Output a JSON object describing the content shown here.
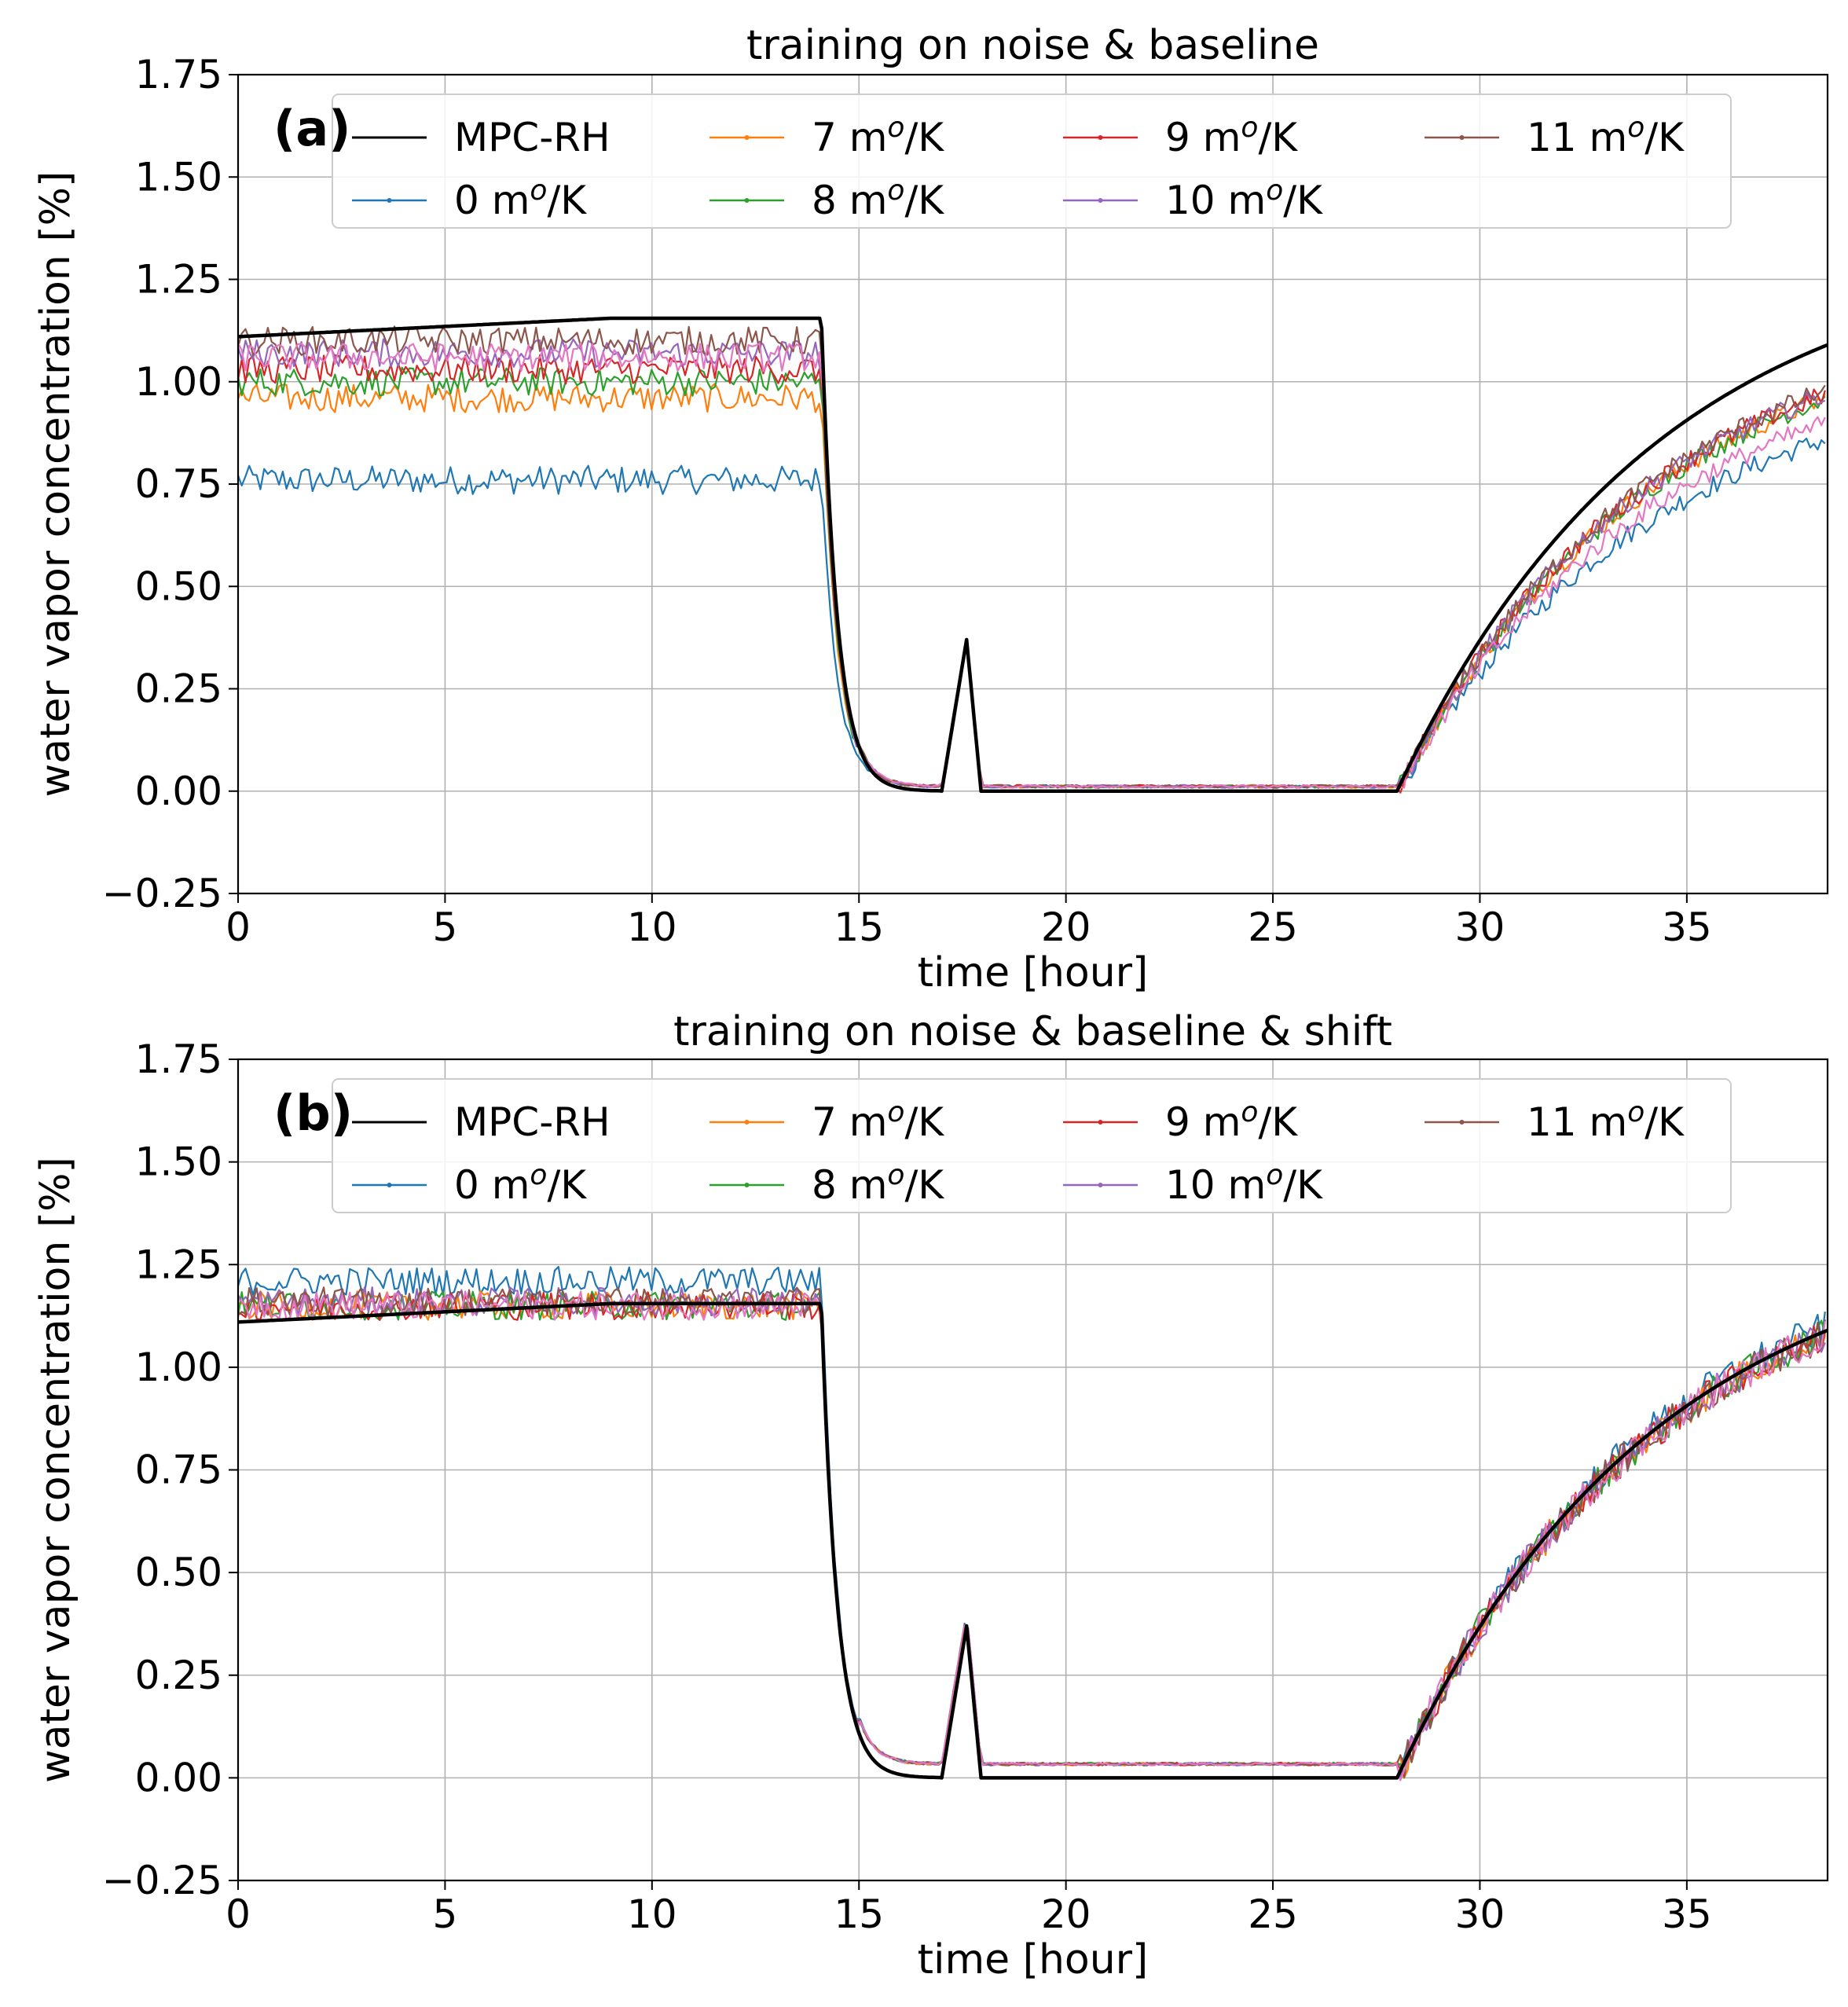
{
  "chart_data": [
    {
      "type": "line",
      "panel_label": "(a)",
      "title": "training on noise & baseline",
      "xlabel": "time [hour]",
      "ylabel": "water vapor concentration [%]",
      "xlim": [
        0,
        38.4
      ],
      "ylim": [
        -0.25,
        1.75
      ],
      "xticks": [
        0,
        5,
        10,
        15,
        20,
        25,
        30,
        35
      ],
      "xtick_labels": [
        "0",
        "5",
        "10",
        "15",
        "20",
        "25",
        "30",
        "35"
      ],
      "yticks": [
        -0.25,
        0,
        0.25,
        0.5,
        0.75,
        1.0,
        1.25,
        1.5,
        1.75
      ],
      "ytick_labels": [
        "−0.25",
        "0.00",
        "0.25",
        "0.50",
        "0.75",
        "1.00",
        "1.25",
        "1.50",
        "1.75"
      ],
      "grid": true,
      "legend_position": "top",
      "series": [
        {
          "name": "MPC-RH",
          "sup": "",
          "color": "#000000",
          "pre": 1.13,
          "post": 1.09
        },
        {
          "name": "0 m",
          "sup": "o",
          "unit": "/K",
          "color": "#1f77b4",
          "pre": 0.76,
          "post": 0.86
        },
        {
          "name": "7 m",
          "sup": "o",
          "unit": "/K",
          "color": "#ff7f0e",
          "pre": 0.96,
          "post": 0.96
        },
        {
          "name": "8 m",
          "sup": "o",
          "unit": "/K",
          "color": "#2ca02c",
          "pre": 1.0,
          "post": 0.96
        },
        {
          "name": "9 m",
          "sup": "o",
          "unit": "/K",
          "color": "#d62728",
          "pre": 1.03,
          "post": 0.97
        },
        {
          "name": "10 m",
          "sup": "o",
          "unit": "/K",
          "color": "#9467bd",
          "pre": 1.07,
          "post": 0.97
        },
        {
          "name": "11 m",
          "sup": "o",
          "unit": "/K",
          "color": "#8c564b",
          "pre": 1.1,
          "post": 0.98
        },
        {
          "name": "",
          "sup": "",
          "color": "#e377c2",
          "pre": 1.06,
          "post": 0.9
        }
      ]
    },
    {
      "type": "line",
      "panel_label": "(b)",
      "title": "training on noise & baseline & shift",
      "xlabel": "time [hour]",
      "ylabel": "water vapor concentration [%]",
      "xlim": [
        0,
        38.4
      ],
      "ylim": [
        -0.25,
        1.75
      ],
      "xticks": [
        0,
        5,
        10,
        15,
        20,
        25,
        30,
        35
      ],
      "xtick_labels": [
        "0",
        "5",
        "10",
        "15",
        "20",
        "25",
        "30",
        "35"
      ],
      "yticks": [
        -0.25,
        0,
        0.25,
        0.5,
        0.75,
        1.0,
        1.25,
        1.5,
        1.75
      ],
      "ytick_labels": [
        "−0.25",
        "0.00",
        "0.25",
        "0.50",
        "0.75",
        "1.00",
        "1.25",
        "1.50",
        "1.75"
      ],
      "grid": true,
      "legend_position": "top",
      "series": [
        {
          "name": "MPC-RH",
          "sup": "",
          "color": "#000000",
          "pre": 1.13,
          "post": 1.09
        },
        {
          "name": "0 m",
          "sup": "o",
          "unit": "/K",
          "color": "#1f77b4",
          "pre": 1.21,
          "post": 1.1
        },
        {
          "name": "7 m",
          "sup": "o",
          "unit": "/K",
          "color": "#ff7f0e",
          "pre": 1.15,
          "post": 1.08
        },
        {
          "name": "8 m",
          "sup": "o",
          "unit": "/K",
          "color": "#2ca02c",
          "pre": 1.15,
          "post": 1.08
        },
        {
          "name": "9 m",
          "sup": "o",
          "unit": "/K",
          "color": "#d62728",
          "pre": 1.15,
          "post": 1.08
        },
        {
          "name": "10 m",
          "sup": "o",
          "unit": "/K",
          "color": "#9467bd",
          "pre": 1.16,
          "post": 1.08
        },
        {
          "name": "11 m",
          "sup": "o",
          "unit": "/K",
          "color": "#8c564b",
          "pre": 1.16,
          "post": 1.08
        },
        {
          "name": "",
          "sup": "",
          "color": "#e377c2",
          "pre": 1.15,
          "post": 1.08
        }
      ]
    }
  ]
}
